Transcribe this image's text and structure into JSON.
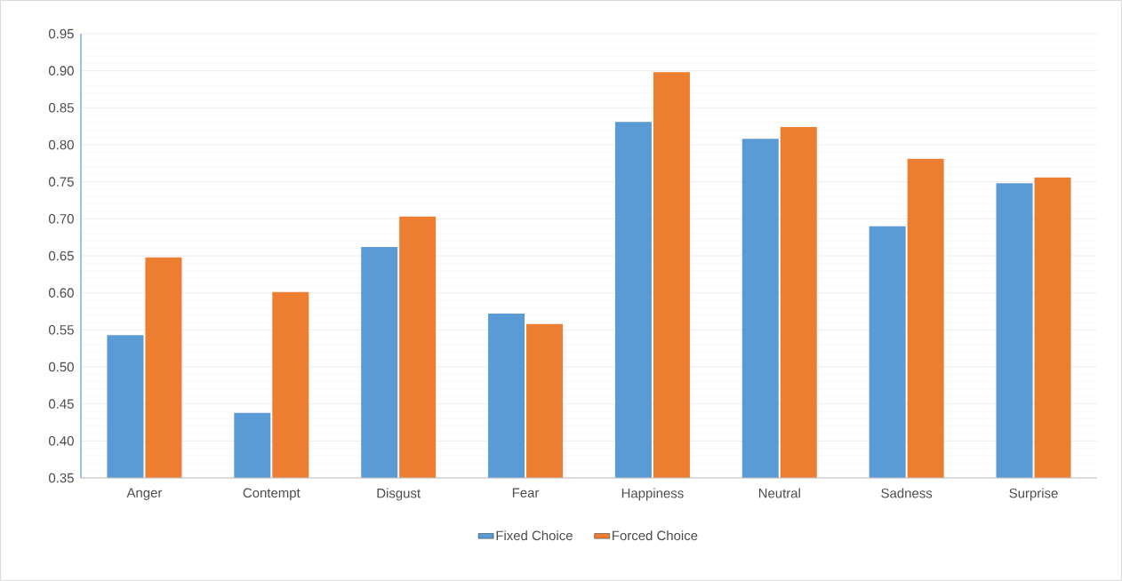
{
  "chart_data": {
    "type": "bar",
    "categories": [
      "Anger",
      "Contempt",
      "Disgust",
      "Fear",
      "Happiness",
      "Neutral",
      "Sadness",
      "Surprise"
    ],
    "series": [
      {
        "name": "Fixed Choice",
        "color": "#5b9bd5",
        "values": [
          0.543,
          0.438,
          0.662,
          0.572,
          0.831,
          0.808,
          0.69,
          0.748
        ]
      },
      {
        "name": "Forced Choice",
        "color": "#ed7d31",
        "values": [
          0.648,
          0.601,
          0.703,
          0.558,
          0.898,
          0.824,
          0.781,
          0.756
        ]
      }
    ],
    "ylim": [
      0.35,
      0.95
    ],
    "yticks": [
      {
        "value": 0.35,
        "label": "0.35"
      },
      {
        "value": 0.4,
        "label": "0.40"
      },
      {
        "value": 0.45,
        "label": "0.45"
      },
      {
        "value": 0.5,
        "label": "0.50"
      },
      {
        "value": 0.55,
        "label": "0.55"
      },
      {
        "value": 0.6,
        "label": "0.60"
      },
      {
        "value": 0.65,
        "label": "0.65"
      },
      {
        "value": 0.7,
        "label": "0.70"
      },
      {
        "value": 0.75,
        "label": "0.75"
      },
      {
        "value": 0.8,
        "label": "0.80"
      },
      {
        "value": 0.85,
        "label": "0.85"
      },
      {
        "value": 0.9,
        "label": "0.90"
      },
      {
        "value": 0.95,
        "label": "0.95"
      }
    ],
    "grid": "y",
    "legend": "bottom"
  }
}
